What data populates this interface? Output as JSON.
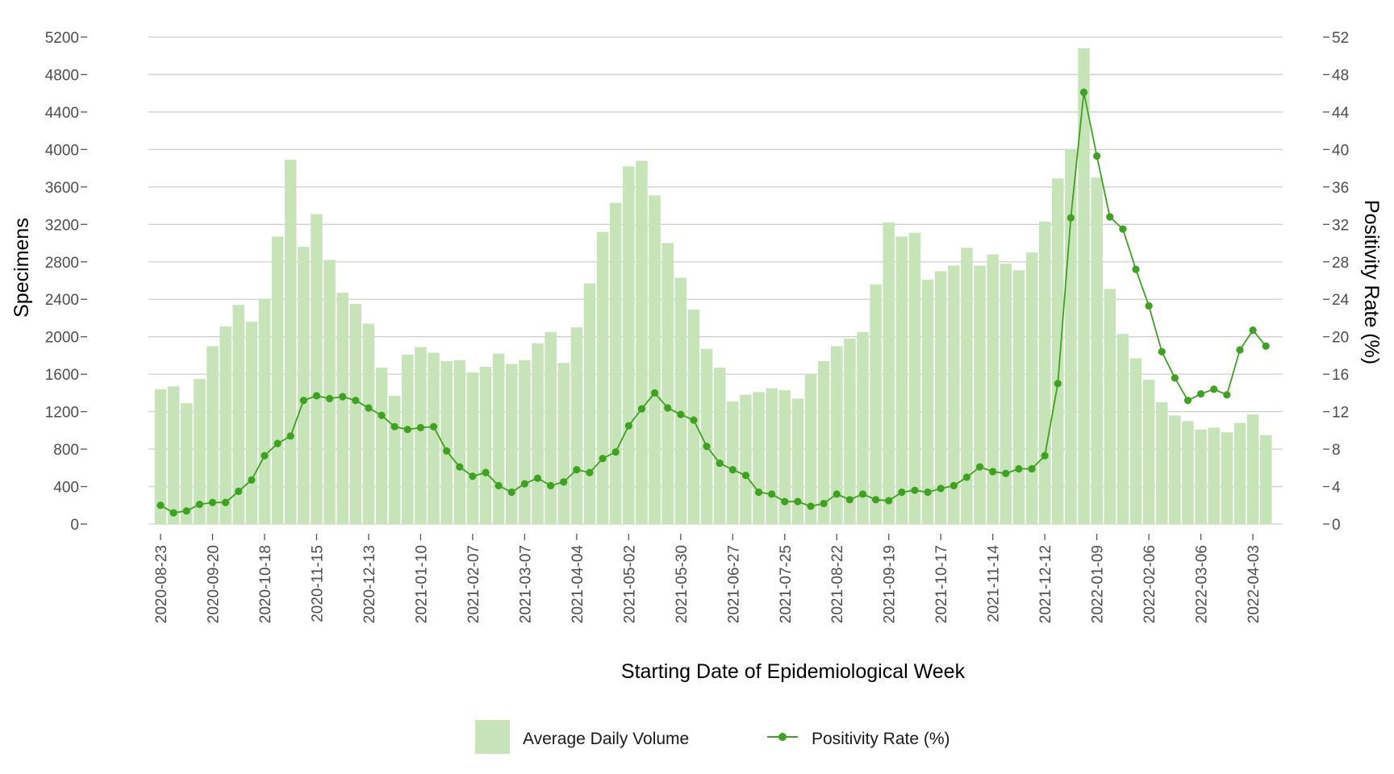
{
  "colors": {
    "bar_fill": "#c7e4b8",
    "line": "#3ca21f",
    "grid": "#cfcfcf",
    "tick_text": "#4d4d4d"
  },
  "chart_data": {
    "type": "bar",
    "xlabel": "Starting Date of Epidemiological Week",
    "ylabel": "Specimens",
    "y2label": "Positivity Rate (%)",
    "ylim": [
      0,
      5200
    ],
    "y2lim": [
      0,
      52
    ],
    "yticks": [
      0,
      400,
      800,
      1200,
      1600,
      2000,
      2400,
      2800,
      3200,
      3600,
      4000,
      4400,
      4800,
      5200
    ],
    "y2ticks": [
      0,
      4,
      8,
      12,
      16,
      20,
      24,
      28,
      32,
      36,
      40,
      44,
      48,
      52
    ],
    "x_tick_labels": [
      "2020-08-23",
      "2020-09-20",
      "2020-10-18",
      "2020-11-15",
      "2020-12-13",
      "2021-01-10",
      "2021-02-07",
      "2021-03-07",
      "2021-04-04",
      "2021-05-02",
      "2021-05-30",
      "2021-06-27",
      "2021-07-25",
      "2021-08-22",
      "2021-09-19",
      "2021-10-17",
      "2021-11-14",
      "2021-12-12",
      "2022-01-09",
      "2022-02-06",
      "2022-03-06",
      "2022-04-03"
    ],
    "grid": true,
    "legend_position": "bottom",
    "x": [
      "2020-08-23",
      "2020-08-30",
      "2020-09-06",
      "2020-09-13",
      "2020-09-20",
      "2020-09-27",
      "2020-10-04",
      "2020-10-11",
      "2020-10-18",
      "2020-10-25",
      "2020-11-01",
      "2020-11-08",
      "2020-11-15",
      "2020-11-22",
      "2020-11-29",
      "2020-12-06",
      "2020-12-13",
      "2020-12-20",
      "2020-12-27",
      "2021-01-03",
      "2021-01-10",
      "2021-01-17",
      "2021-01-24",
      "2021-01-31",
      "2021-02-07",
      "2021-02-14",
      "2021-02-21",
      "2021-02-28",
      "2021-03-07",
      "2021-03-14",
      "2021-03-21",
      "2021-03-28",
      "2021-04-04",
      "2021-04-11",
      "2021-04-18",
      "2021-04-25",
      "2021-05-02",
      "2021-05-09",
      "2021-05-16",
      "2021-05-23",
      "2021-05-30",
      "2021-06-06",
      "2021-06-13",
      "2021-06-20",
      "2021-06-27",
      "2021-07-04",
      "2021-07-11",
      "2021-07-18",
      "2021-07-25",
      "2021-08-01",
      "2021-08-08",
      "2021-08-15",
      "2021-08-22",
      "2021-08-29",
      "2021-09-05",
      "2021-09-12",
      "2021-09-19",
      "2021-09-26",
      "2021-10-03",
      "2021-10-10",
      "2021-10-17",
      "2021-10-24",
      "2021-10-31",
      "2021-11-07",
      "2021-11-14",
      "2021-11-21",
      "2021-11-28",
      "2021-12-05",
      "2021-12-12",
      "2021-12-19",
      "2021-12-26",
      "2022-01-02",
      "2022-01-09",
      "2022-01-16",
      "2022-01-23",
      "2022-01-30",
      "2022-02-06",
      "2022-02-13",
      "2022-02-20",
      "2022-02-27",
      "2022-03-06",
      "2022-03-13",
      "2022-03-20",
      "2022-03-27",
      "2022-04-03",
      "2022-04-10"
    ],
    "series": [
      {
        "name": "Average Daily Volume",
        "axis": "left",
        "type": "bar",
        "values": [
          1440,
          1470,
          1290,
          1550,
          1900,
          2110,
          2340,
          2160,
          2400,
          3070,
          3890,
          2960,
          3310,
          2820,
          2470,
          2350,
          2140,
          1670,
          1370,
          1810,
          1890,
          1830,
          1740,
          1750,
          1620,
          1680,
          1820,
          1710,
          1750,
          1930,
          2050,
          1720,
          2100,
          2570,
          3120,
          3430,
          3820,
          3880,
          3510,
          3000,
          2630,
          2290,
          1870,
          1670,
          1310,
          1380,
          1410,
          1450,
          1430,
          1340,
          1600,
          1740,
          1900,
          1980,
          2050,
          2560,
          3220,
          3070,
          3110,
          2610,
          2700,
          2760,
          2950,
          2760,
          2880,
          2780,
          2710,
          2900,
          3230,
          3690,
          4000,
          5080,
          3700,
          2510,
          2030,
          1770,
          1540,
          1300,
          1160,
          1100,
          1010,
          1030,
          980,
          1080,
          1170,
          950
        ]
      },
      {
        "name": "Positivity Rate (%)",
        "axis": "right",
        "type": "line",
        "values": [
          2.0,
          1.2,
          1.4,
          2.1,
          2.3,
          2.3,
          3.5,
          4.7,
          7.3,
          8.6,
          9.4,
          13.2,
          13.7,
          13.4,
          13.6,
          13.2,
          12.4,
          11.6,
          10.4,
          10.1,
          10.3,
          10.4,
          7.8,
          6.1,
          5.1,
          5.5,
          4.1,
          3.4,
          4.3,
          4.9,
          4.1,
          4.5,
          5.8,
          5.5,
          7.0,
          7.7,
          10.5,
          12.3,
          14.0,
          12.4,
          11.7,
          11.1,
          8.3,
          6.5,
          5.8,
          5.2,
          3.4,
          3.2,
          2.4,
          2.4,
          1.9,
          2.2,
          3.2,
          2.6,
          3.2,
          2.6,
          2.5,
          3.4,
          3.6,
          3.4,
          3.8,
          4.1,
          5.0,
          6.1,
          5.6,
          5.4,
          5.9,
          5.9,
          7.3,
          15.0,
          32.7,
          46.1,
          39.3,
          32.8,
          31.5,
          27.2,
          23.3,
          18.4,
          15.6,
          13.2,
          13.9,
          14.4,
          13.8,
          18.6,
          20.7,
          19.0
        ]
      }
    ]
  }
}
